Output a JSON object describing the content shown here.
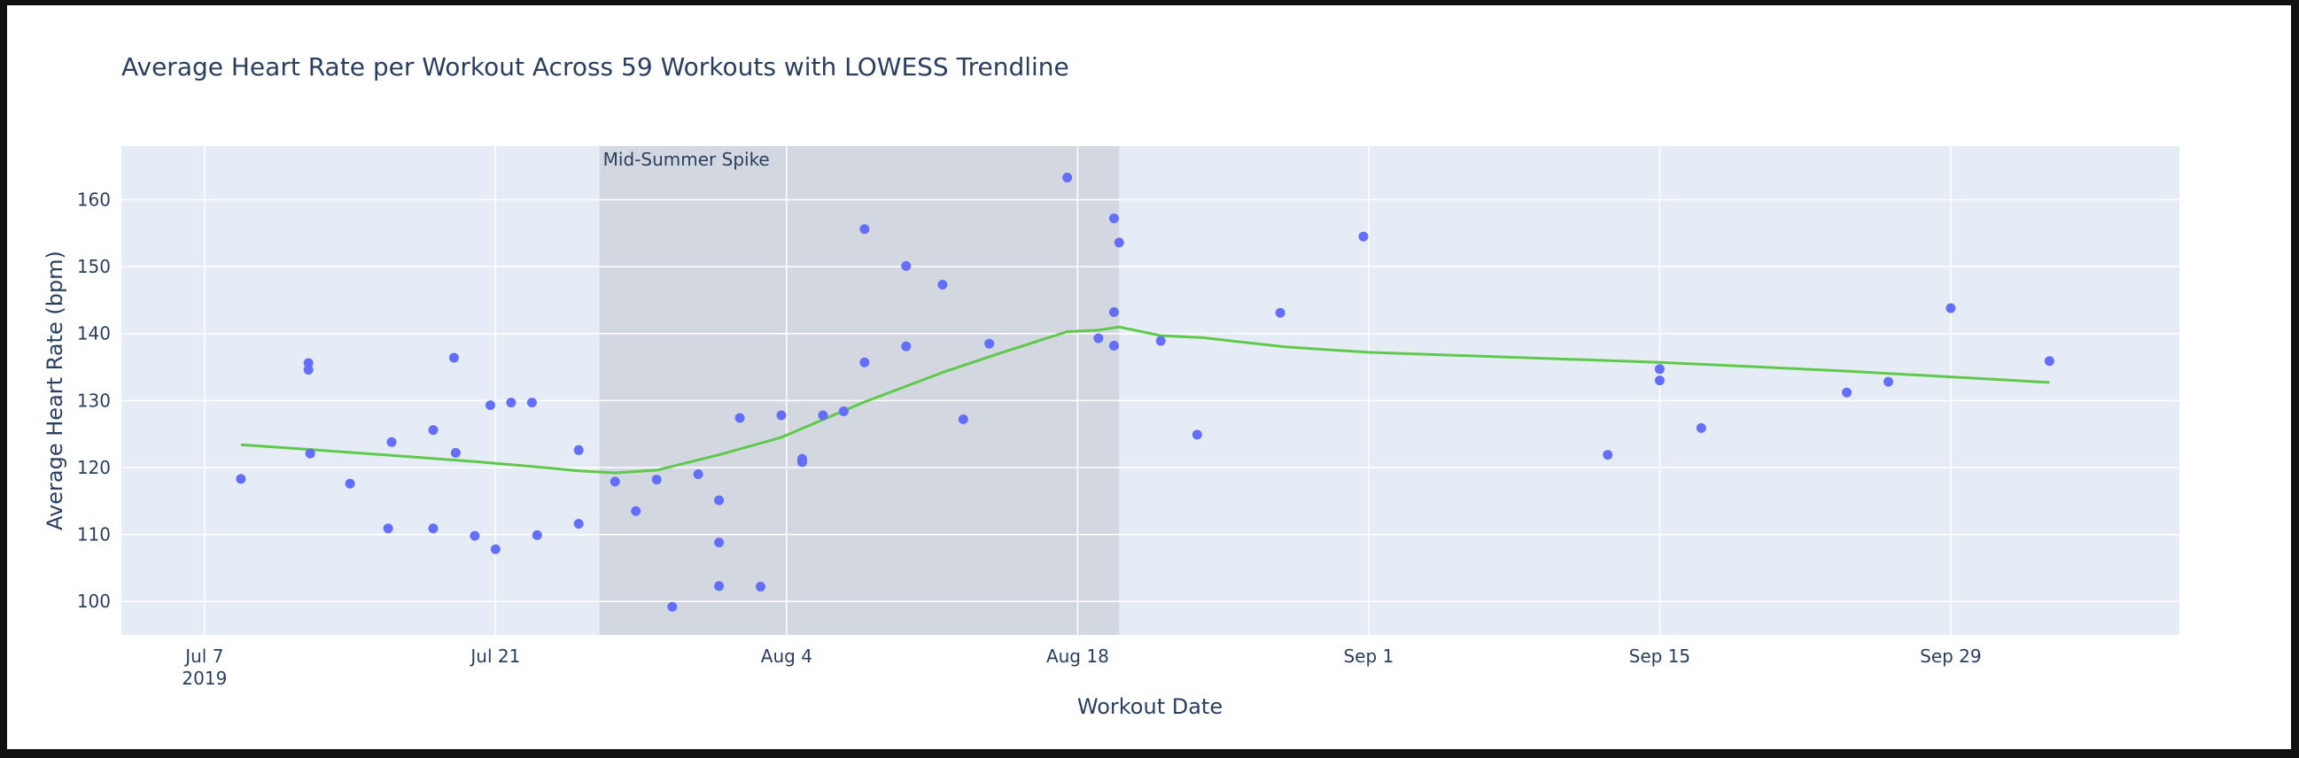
{
  "chart_data": {
    "type": "scatter",
    "title": "Average Heart Rate per Workout Across 59 Workouts with LOWESS Trendline",
    "xlabel": "Workout Date",
    "ylabel": "Average Heart Rate (bpm)",
    "xlim": [
      "2019-07-03",
      "2019-10-10"
    ],
    "ylim": [
      95,
      168
    ],
    "grid": true,
    "legend": "none",
    "x_ticks": [
      {
        "date": "2019-07-07",
        "label": "Jul 7",
        "sublabel": "2019"
      },
      {
        "date": "2019-07-21",
        "label": "Jul 21"
      },
      {
        "date": "2019-08-04",
        "label": "Aug 4"
      },
      {
        "date": "2019-08-18",
        "label": "Aug 18"
      },
      {
        "date": "2019-09-01",
        "label": "Sep 1"
      },
      {
        "date": "2019-09-15",
        "label": "Sep 15"
      },
      {
        "date": "2019-09-29",
        "label": "Sep 29"
      }
    ],
    "y_ticks": [
      100,
      110,
      120,
      130,
      140,
      150,
      160
    ],
    "highlight_region": {
      "label": "Mid-Summer Spike",
      "x0": "2019-07-26",
      "x1": "2019-08-20",
      "color": "#d3d7e0"
    },
    "colors": {
      "points": "#636efa",
      "trend": "#5ec94a",
      "plot_bg": "#e5ecf6",
      "grid": "#ffffff"
    },
    "series": [
      {
        "kind": "points",
        "x": [
          "2019-07-08T18:00",
          "2019-07-12T00:00",
          "2019-07-12T00:00",
          "2019-07-12T02:00",
          "2019-07-14T00:00",
          "2019-07-15T20:00",
          "2019-07-16T00:00",
          "2019-07-18T00:00",
          "2019-07-18T00:00",
          "2019-07-19T00:00",
          "2019-07-19T02:00",
          "2019-07-20T00:00",
          "2019-07-20T18:00",
          "2019-07-21T00:00",
          "2019-07-21T18:00",
          "2019-07-22T18:00",
          "2019-07-23T00:00",
          "2019-07-25T00:00",
          "2019-07-25T00:00",
          "2019-07-26T18:00",
          "2019-07-27T18:00",
          "2019-07-28T18:00",
          "2019-07-29T12:00",
          "2019-07-30T18:00",
          "2019-07-31T18:00",
          "2019-07-31T18:00",
          "2019-07-31T18:00",
          "2019-08-01T18:00",
          "2019-08-02T18:00",
          "2019-08-03T18:00",
          "2019-08-04T18:00",
          "2019-08-04T18:00",
          "2019-08-05T18:00",
          "2019-08-06T18:00",
          "2019-08-07T18:00",
          "2019-08-07T18:00",
          "2019-08-09T18:00",
          "2019-08-09T18:00",
          "2019-08-11T12:00",
          "2019-08-12T12:00",
          "2019-08-13T18:00",
          "2019-08-17T12:00",
          "2019-08-19T00:00",
          "2019-08-19T18:00",
          "2019-08-19T18:00",
          "2019-08-19T18:00",
          "2019-08-20T00:00",
          "2019-08-22T00:00",
          "2019-08-23T18:00",
          "2019-08-27T18:00",
          "2019-08-31T18:00",
          "2019-09-12T12:00",
          "2019-09-15T00:00",
          "2019-09-15T00:00",
          "2019-09-17T00:00",
          "2019-09-24T00:00",
          "2019-09-26T00:00",
          "2019-09-29T00:00",
          "2019-10-03T18:00"
        ],
        "y": [
          118.3,
          135.6,
          134.6,
          122.1,
          117.6,
          110.9,
          123.8,
          125.6,
          110.9,
          136.4,
          122.2,
          109.8,
          129.3,
          107.8,
          129.7,
          129.7,
          109.9,
          122.6,
          111.6,
          117.9,
          113.5,
          118.2,
          99.2,
          119.0,
          115.1,
          108.8,
          102.3,
          127.4,
          102.2,
          127.8,
          121.3,
          120.8,
          127.8,
          128.4,
          135.7,
          155.6,
          138.1,
          150.1,
          147.3,
          127.2,
          138.5,
          163.3,
          139.3,
          143.2,
          138.2,
          157.2,
          153.6,
          138.9,
          124.9,
          143.1,
          154.5,
          121.9,
          134.7,
          133.0,
          125.9,
          131.2,
          132.8,
          143.8,
          135.9
        ]
      },
      {
        "kind": "trendline",
        "name": "LOWESS Trendline",
        "x": [
          "2019-07-08T18:00",
          "2019-07-12T00:00",
          "2019-07-16T00:00",
          "2019-07-20T00:00",
          "2019-07-23T00:00",
          "2019-07-25T00:00",
          "2019-07-26T18:00",
          "2019-07-28T18:00",
          "2019-07-31T18:00",
          "2019-08-03T18:00",
          "2019-08-07T18:00",
          "2019-08-11T12:00",
          "2019-08-14T12:00",
          "2019-08-17T12:00",
          "2019-08-19T00:00",
          "2019-08-20T00:00",
          "2019-08-22T00:00",
          "2019-08-24T00:00",
          "2019-08-28T00:00",
          "2019-09-01T00:00",
          "2019-09-15T00:00",
          "2019-09-24T00:00",
          "2019-10-03T18:00"
        ],
        "y": [
          123.4,
          122.7,
          121.8,
          120.9,
          120.1,
          119.5,
          119.2,
          119.6,
          121.9,
          124.5,
          129.8,
          134.2,
          137.3,
          140.3,
          140.5,
          141.0,
          139.7,
          139.4,
          138.0,
          137.2,
          135.7,
          134.4,
          132.7
        ]
      }
    ]
  }
}
